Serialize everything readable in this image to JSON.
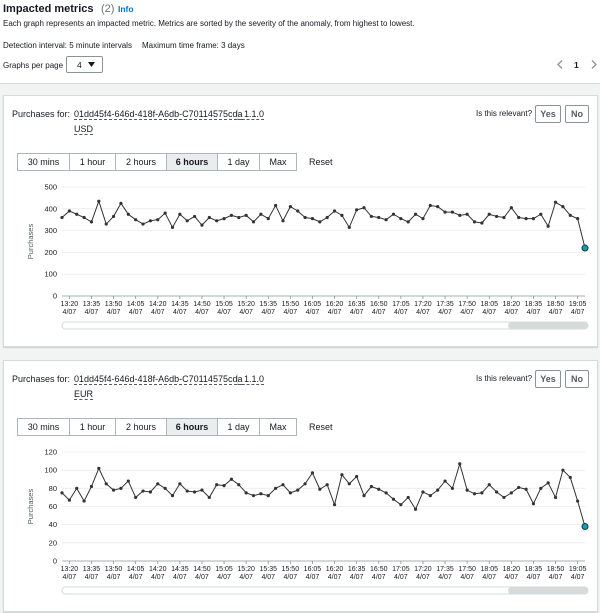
{
  "header": {
    "title": "Impacted metrics",
    "count": "(2)",
    "info": "Info",
    "description": "Each graph represents an impacted metric. Metrics are sorted by the severity of the anomaly, from highest to lowest.",
    "detection_interval": "Detection interval: 5 minute intervals",
    "max_time_frame": "Maximum time frame: 3 days",
    "graphs_per_page_label": "Graphs per page",
    "graphs_per_page": "4",
    "page": "1"
  },
  "panels": [
    {
      "metric_label": "Purchases for:",
      "id": "01dd45f4-646d-418f-A6db-C70114575cda",
      "version": "1.1.0",
      "currency": "USD",
      "relevance_question": "Is this relevant?",
      "yes": "Yes",
      "no": "No",
      "range_buttons": [
        "30 mins",
        "1 hour",
        "2 hours",
        "6 hours",
        "1 day",
        "Max"
      ],
      "reset": "Reset"
    },
    {
      "metric_label": "Purchases for:",
      "id": "01dd45f4-646d-418f-A6db-C70114575cda",
      "version": "1.1.0",
      "currency": "EUR",
      "relevance_question": "Is this relevant?",
      "yes": "Yes",
      "no": "No",
      "range_buttons": [
        "30 mins",
        "1 hour",
        "2 hours",
        "6 hours",
        "1 day",
        "Max"
      ],
      "reset": "Reset"
    }
  ],
  "chart_data": [
    {
      "type": "line",
      "y_label": "Purchases",
      "color": "#333333",
      "last_point_color": "#1a9ba8",
      "grid": true,
      "ylim": [
        0,
        500
      ],
      "yticks": [
        0,
        100,
        200,
        300,
        400,
        500
      ],
      "categories": [
        null,
        "13:20",
        null,
        null,
        "13:35",
        null,
        null,
        "13:50",
        null,
        null,
        "14:05",
        null,
        null,
        "14:20",
        null,
        null,
        "14:35",
        null,
        null,
        "14:50",
        null,
        null,
        "15:05",
        null,
        null,
        "15:20",
        null,
        null,
        "15:35",
        null,
        null,
        "15:50",
        null,
        null,
        "16:05",
        null,
        null,
        "16:20",
        null,
        null,
        "16:35",
        null,
        null,
        "16:50",
        null,
        null,
        "17:05",
        null,
        null,
        "17:20",
        null,
        null,
        "17:35",
        null,
        null,
        "17:50",
        null,
        null,
        "18:05",
        null,
        null,
        "18:20",
        null,
        null,
        "18:35",
        null,
        null,
        "18:50",
        null,
        null,
        "19:05",
        null
      ],
      "category_dates": [
        null,
        "4/07",
        null,
        null,
        "4/07",
        null,
        null,
        "4/07",
        null,
        null,
        "4/07",
        null,
        null,
        "4/07",
        null,
        null,
        "4/07",
        null,
        null,
        "4/07",
        null,
        null,
        "4/07",
        null,
        null,
        "4/07",
        null,
        null,
        "4/07",
        null,
        null,
        "4/07",
        null,
        null,
        "4/07",
        null,
        null,
        "4/07",
        null,
        null,
        "4/07",
        null,
        null,
        "4/07",
        null,
        null,
        "4/07",
        null,
        null,
        "4/07",
        null,
        null,
        "4/07",
        null,
        null,
        "4/07",
        null,
        null,
        "4/07",
        null,
        null,
        "4/07",
        null,
        null,
        "4/07",
        null,
        null,
        "4/07",
        null,
        null,
        "4/07",
        null
      ],
      "values": [
        360,
        390,
        375,
        360,
        340,
        435,
        330,
        365,
        425,
        375,
        350,
        330,
        345,
        350,
        380,
        315,
        375,
        345,
        365,
        325,
        360,
        345,
        355,
        370,
        360,
        370,
        340,
        375,
        355,
        415,
        345,
        410,
        390,
        360,
        355,
        340,
        360,
        390,
        370,
        315,
        395,
        405,
        365,
        360,
        350,
        375,
        355,
        340,
        375,
        355,
        415,
        410,
        385,
        385,
        370,
        375,
        340,
        335,
        375,
        365,
        360,
        405,
        360,
        355,
        355,
        375,
        320,
        430,
        410,
        370,
        355,
        220
      ]
    },
    {
      "type": "line",
      "y_label": "Purchases",
      "color": "#333333",
      "last_point_color": "#1a9ba8",
      "grid": true,
      "ylim": [
        0,
        120
      ],
      "yticks": [
        0,
        20,
        40,
        60,
        80,
        100,
        120
      ],
      "categories": [
        null,
        "13:20",
        null,
        null,
        "13:35",
        null,
        null,
        "13:50",
        null,
        null,
        "14:05",
        null,
        null,
        "14:20",
        null,
        null,
        "14:35",
        null,
        null,
        "14:50",
        null,
        null,
        "15:05",
        null,
        null,
        "15:20",
        null,
        null,
        "15:35",
        null,
        null,
        "15:50",
        null,
        null,
        "16:05",
        null,
        null,
        "16:20",
        null,
        null,
        "16:35",
        null,
        null,
        "16:50",
        null,
        null,
        "17:05",
        null,
        null,
        "17:20",
        null,
        null,
        "17:35",
        null,
        null,
        "17:50",
        null,
        null,
        "18:05",
        null,
        null,
        "18:20",
        null,
        null,
        "18:35",
        null,
        null,
        "18:50",
        null,
        null,
        "19:05",
        null
      ],
      "category_dates": [
        null,
        "4/07",
        null,
        null,
        "4/07",
        null,
        null,
        "4/07",
        null,
        null,
        "4/07",
        null,
        null,
        "4/07",
        null,
        null,
        "4/07",
        null,
        null,
        "4/07",
        null,
        null,
        "4/07",
        null,
        null,
        "4/07",
        null,
        null,
        "4/07",
        null,
        null,
        "4/07",
        null,
        null,
        "4/07",
        null,
        null,
        "4/07",
        null,
        null,
        "4/07",
        null,
        null,
        "4/07",
        null,
        null,
        "4/07",
        null,
        null,
        "4/07",
        null,
        null,
        "4/07",
        null,
        null,
        "4/07",
        null,
        null,
        "4/07",
        null,
        null,
        "4/07",
        null,
        null,
        "4/07",
        null,
        null,
        "4/07",
        null,
        null,
        "4/07",
        null
      ],
      "values": [
        75,
        67,
        80,
        66,
        82,
        102,
        85,
        78,
        80,
        88,
        70,
        77,
        76,
        85,
        80,
        72,
        85,
        77,
        76,
        78,
        70,
        84,
        83,
        90,
        84,
        75,
        72,
        74,
        72,
        80,
        84,
        75,
        78,
        85,
        97,
        79,
        84,
        62,
        95,
        85,
        93,
        72,
        82,
        79,
        75,
        68,
        62,
        70,
        57,
        76,
        72,
        78,
        88,
        80,
        107,
        78,
        74,
        75,
        84,
        76,
        70,
        75,
        81,
        79,
        63,
        80,
        86,
        70,
        100,
        92,
        66,
        38
      ]
    }
  ]
}
